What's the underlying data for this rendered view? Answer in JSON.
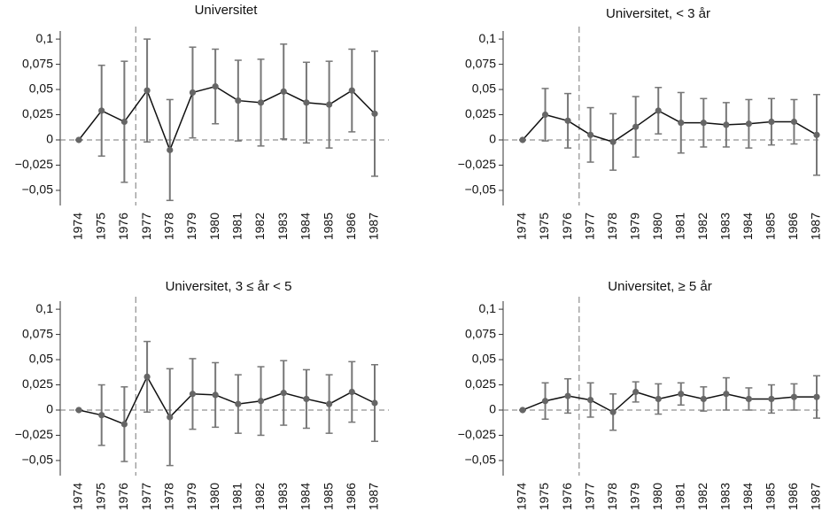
{
  "chart_data": [
    {
      "type": "line",
      "title": "Universitet",
      "categories": [
        "1974",
        "1975",
        "1976",
        "1977",
        "1978",
        "1979",
        "1980",
        "1981",
        "1982",
        "1983",
        "1984",
        "1985",
        "1986",
        "1987"
      ],
      "values": [
        0,
        0.029,
        0.018,
        0.049,
        -0.01,
        0.047,
        0.053,
        0.039,
        0.037,
        0.048,
        0.037,
        0.035,
        0.049,
        0.026
      ],
      "errors": [
        0,
        0.045,
        0.06,
        0.051,
        0.05,
        0.045,
        0.037,
        0.04,
        0.043,
        0.047,
        0.04,
        0.043,
        0.041,
        0.062
      ],
      "color": "#666666",
      "ylim": [
        -0.065,
        0.108
      ],
      "yticks": [
        {
          "value": 0.1,
          "label": "0,1"
        },
        {
          "value": 0.075,
          "label": "0,075"
        },
        {
          "value": 0.05,
          "label": "0,05"
        },
        {
          "value": 0.025,
          "label": "0,025"
        },
        0,
        {
          "value": -0.025,
          "label": "−0,025"
        },
        {
          "value": -0.05,
          "label": "−0,05"
        }
      ]
    },
    {
      "type": "line",
      "title": "Universitet, < 3 år",
      "categories": [
        "1974",
        "1975",
        "1976",
        "1977",
        "1978",
        "1979",
        "1980",
        "1981",
        "1982",
        "1983",
        "1984",
        "1985",
        "1986",
        "1987"
      ],
      "values": [
        0,
        0.025,
        0.019,
        0.005,
        -0.002,
        0.013,
        0.029,
        0.017,
        0.017,
        0.015,
        0.016,
        0.018,
        0.018,
        0.005
      ],
      "errors": [
        0,
        0.026,
        0.027,
        0.027,
        0.028,
        0.03,
        0.023,
        0.03,
        0.024,
        0.022,
        0.024,
        0.023,
        0.022,
        0.04
      ],
      "color": "#666666",
      "ylim": [
        -0.065,
        0.108
      ],
      "yticks": [
        {
          "value": 0.1,
          "label": "0,1"
        },
        {
          "value": 0.075,
          "label": "0,075"
        },
        {
          "value": 0.05,
          "label": "0,05"
        },
        {
          "value": 0.025,
          "label": "0,025"
        },
        0,
        {
          "value": -0.025,
          "label": "−0,025"
        },
        {
          "value": -0.05,
          "label": "−0,05"
        }
      ]
    },
    {
      "type": "line",
      "title": "Universitet, 3 ≤ år < 5",
      "categories": [
        "1974",
        "1975",
        "1976",
        "1977",
        "1978",
        "1979",
        "1980",
        "1981",
        "1982",
        "1983",
        "1984",
        "1985",
        "1986",
        "1987"
      ],
      "values": [
        0,
        -0.005,
        -0.014,
        0.033,
        -0.007,
        0.016,
        0.015,
        0.006,
        0.009,
        0.017,
        0.011,
        0.006,
        0.018,
        0.007
      ],
      "errors": [
        0,
        0.03,
        0.037,
        0.035,
        0.048,
        0.035,
        0.032,
        0.029,
        0.034,
        0.032,
        0.029,
        0.029,
        0.03,
        0.038
      ],
      "color": "#666666",
      "ylim": [
        -0.065,
        0.108
      ],
      "yticks": [
        {
          "value": 0.1,
          "label": "0,1"
        },
        {
          "value": 0.075,
          "label": "0,075"
        },
        {
          "value": 0.05,
          "label": "0,05"
        },
        {
          "value": 0.025,
          "label": "0,025"
        },
        0,
        {
          "value": -0.025,
          "label": "−0,025"
        },
        {
          "value": -0.05,
          "label": "−0,05"
        }
      ]
    },
    {
      "type": "line",
      "title": "Universitet, ≥ 5 år",
      "categories": [
        "1974",
        "1975",
        "1976",
        "1977",
        "1978",
        "1979",
        "1980",
        "1981",
        "1982",
        "1983",
        "1984",
        "1985",
        "1986",
        "1987"
      ],
      "values": [
        0,
        0.009,
        0.014,
        0.01,
        -0.002,
        0.018,
        0.011,
        0.016,
        0.011,
        0.016,
        0.011,
        0.011,
        0.013,
        0.013
      ],
      "errors": [
        0,
        0.018,
        0.017,
        0.017,
        0.018,
        0.01,
        0.015,
        0.011,
        0.012,
        0.016,
        0.011,
        0.014,
        0.013,
        0.021
      ],
      "color": "#666666",
      "ylim": [
        -0.065,
        0.108
      ],
      "yticks": [
        {
          "value": 0.1,
          "label": "0,1"
        },
        {
          "value": 0.075,
          "label": "0,075"
        },
        {
          "value": 0.05,
          "label": "0,05"
        },
        {
          "value": 0.025,
          "label": "0,025"
        },
        0,
        {
          "value": -0.025,
          "label": "−0,025"
        },
        {
          "value": -0.05,
          "label": "−0,05"
        }
      ]
    }
  ]
}
